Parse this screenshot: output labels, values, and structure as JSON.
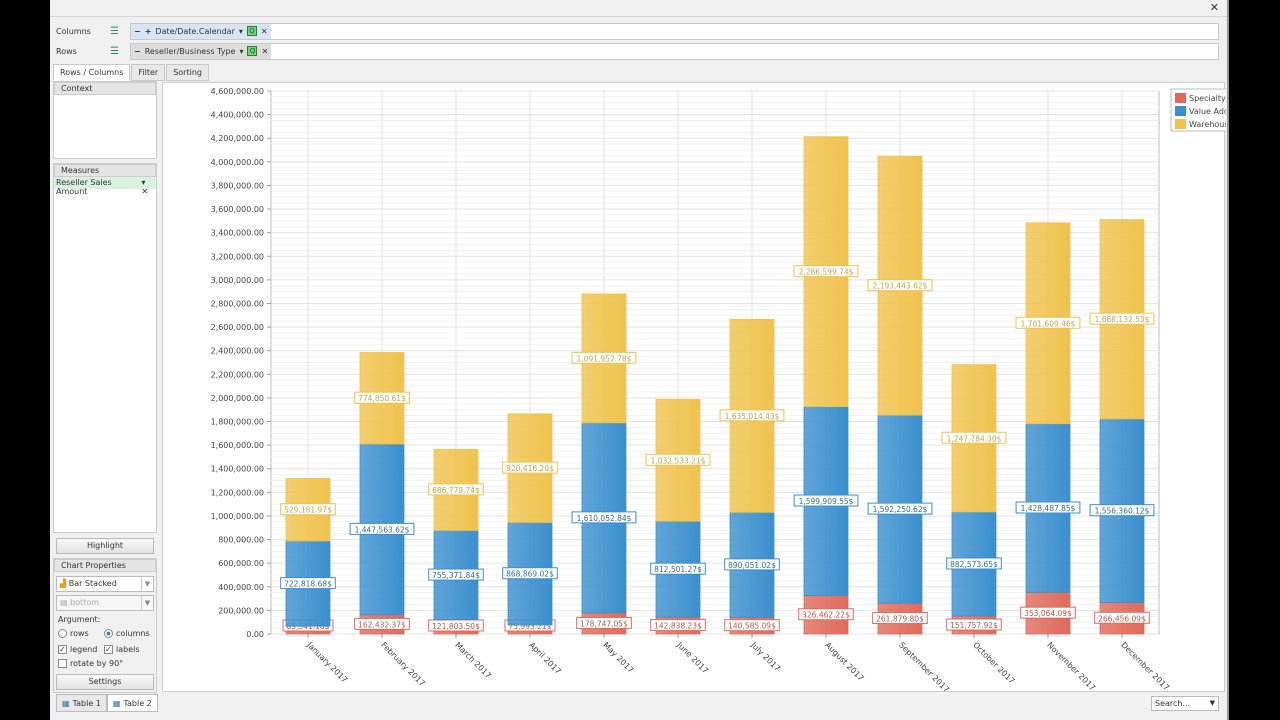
{
  "window": {
    "close_icon": "close-icon"
  },
  "fields": {
    "columns_label": "Columns",
    "rows_label": "Rows",
    "columns_field": "Date/Date.Calendar",
    "rows_field": "Reseller/Business Type"
  },
  "tabs": [
    {
      "label": "Rows / Columns",
      "active": true
    },
    {
      "label": "Filter"
    },
    {
      "label": "Sorting"
    }
  ],
  "left": {
    "context_label": "Context",
    "measures_label": "Measures",
    "measure": "Reseller Sales Amount",
    "highlight": "Highlight",
    "chart_properties": "Chart Properties",
    "chart_type": "Bar Stacked",
    "legend_pos": "bottom",
    "argument_label": "Argument:",
    "rows": "rows",
    "columns": "columns",
    "legend": "legend",
    "labels": "labels",
    "rotate": "rotate by 90°",
    "settings": "Settings"
  },
  "bottom_tabs": [
    "Table 1",
    "Table 2"
  ],
  "search_placeholder": "Search...",
  "chart_data": {
    "type": "bar",
    "stacked": true,
    "categories": [
      "January 2017",
      "February 2017",
      "March 2017",
      "April 2017",
      "May 2017",
      "June 2017",
      "July 2017",
      "August 2017",
      "September 2017",
      "October 2017",
      "November 2017",
      "December 2017"
    ],
    "series": [
      {
        "name": "Specialty Bike Shop",
        "color": "#e06a5a",
        "values": [
          65541.18,
          162432.37,
          121803.5,
          75993.21,
          178747.05,
          142838.23,
          140585.09,
          326462.22,
          261879.8,
          151757.92,
          353064.09,
          266456.09
        ]
      },
      {
        "name": "Value Added Reseller",
        "color": "#3a8fcf",
        "values": [
          722818.68,
          1447563.62,
          755371.84,
          868869.02,
          1610052.84,
          812501.27,
          890051.02,
          1599909.55,
          1592250.62,
          882573.65,
          1428487.85,
          1556360.12
        ]
      },
      {
        "name": "Warehouse",
        "color": "#f0c24d",
        "values": [
          529181.97,
          774850.61,
          686779.74,
          920416.2,
          1091952.78,
          1032533.21,
          1635014.43,
          2286599.74,
          2193443.62,
          1247784.3,
          1701609.46,
          1688132.53
        ]
      }
    ],
    "label_suffix": "$",
    "ylim": [
      0,
      4600000
    ],
    "ytick_step": 200000,
    "grid": true,
    "legend": "top-right"
  }
}
